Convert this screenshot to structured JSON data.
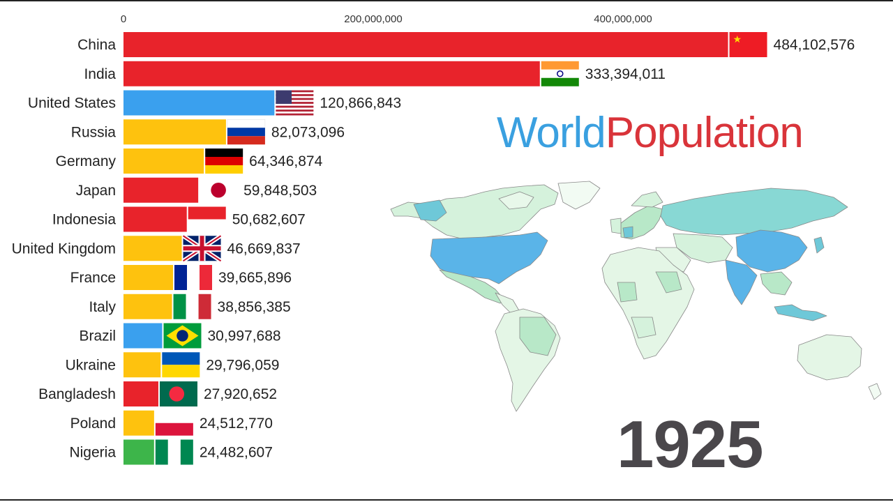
{
  "chart_data": {
    "type": "bar",
    "orientation": "horizontal",
    "title": "World Population",
    "title_parts": [
      "World",
      "Population"
    ],
    "period": "1925",
    "xlim": [
      0,
      500000000
    ],
    "x_ticks": [
      0,
      200000000,
      400000000
    ],
    "x_tick_labels": [
      "0",
      "200,000,000",
      "400,000,000"
    ],
    "grid": false,
    "categories": [
      "China",
      "India",
      "United States",
      "Russia",
      "Germany",
      "Japan",
      "Indonesia",
      "United Kingdom",
      "France",
      "Italy",
      "Brazil",
      "Ukraine",
      "Bangladesh",
      "Poland",
      "Nigeria"
    ],
    "values": [
      484102576,
      333394011,
      120866843,
      82073096,
      64346874,
      59848503,
      50682607,
      46669837,
      39665896,
      38856385,
      30997688,
      29796059,
      27920652,
      24512770,
      24482607
    ],
    "value_labels": [
      "484,102,576",
      "333,394,011",
      "120,866,843",
      "82,073,096",
      "64,346,874",
      "59,848,503",
      "50,682,607",
      "46,669,837",
      "39,665,896",
      "38,856,385",
      "30,997,688",
      "29,796,059",
      "27,920,652",
      "24,512,770",
      "24,482,607"
    ],
    "bar_colors": [
      "#e8232b",
      "#e8232b",
      "#3aa0ee",
      "#fec20e",
      "#fec20e",
      "#e8232b",
      "#e8232b",
      "#fec20e",
      "#fec20e",
      "#fec20e",
      "#3aa0ee",
      "#fec20e",
      "#e8232b",
      "#fec20e",
      "#3db54a"
    ],
    "flags": [
      "china-flag-icon",
      "india-flag-icon",
      "usa-flag-icon",
      "russia-flag-icon",
      "germany-flag-icon",
      "japan-flag-icon",
      "indonesia-flag-icon",
      "uk-flag-icon",
      "france-flag-icon",
      "italy-flag-icon",
      "brazil-flag-icon",
      "ukraine-flag-icon",
      "bangladesh-flag-icon",
      "poland-flag-icon",
      "nigeria-flag-icon"
    ]
  },
  "colors": {
    "asia": "#e8232b",
    "americas": "#3aa0ee",
    "europe": "#fec20e",
    "africa": "#3db54a",
    "title_world": "#3aa0e0",
    "title_population": "#d9343a",
    "year": "#4a474b"
  },
  "map": {
    "type": "world-choropleth",
    "icon": "world-map-icon"
  }
}
